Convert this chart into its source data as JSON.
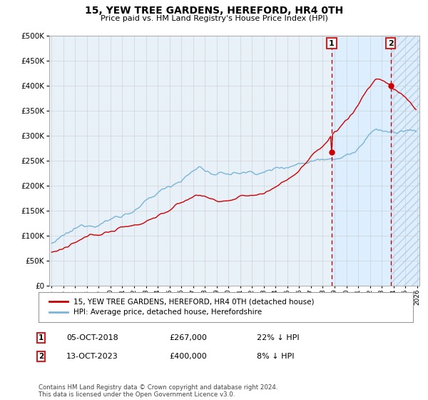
{
  "title": "15, YEW TREE GARDENS, HEREFORD, HR4 0TH",
  "subtitle": "Price paid vs. HM Land Registry's House Price Index (HPI)",
  "legend_line1": "15, YEW TREE GARDENS, HEREFORD, HR4 0TH (detached house)",
  "legend_line2": "HPI: Average price, detached house, Herefordshire",
  "footnote": "Contains HM Land Registry data © Crown copyright and database right 2024.\nThis data is licensed under the Open Government Licence v3.0.",
  "hpi_color": "#7ab4d8",
  "price_color": "#cc0000",
  "shade_color": "#ddeeff",
  "hatch_color": "#b8cfe8",
  "grid_color": "#cccccc",
  "background_color": "#ffffff",
  "plot_bg_color": "#e8f0f8",
  "annotation1": {
    "label": "1",
    "date": "05-OCT-2018",
    "price": 267000,
    "pct": "22% ↓ HPI"
  },
  "annotation2": {
    "label": "2",
    "date": "13-OCT-2023",
    "price": 400000,
    "pct": "8% ↓ HPI"
  },
  "ann1_year": 2018.75,
  "ann2_year": 2023.75,
  "x_start_year": 1995,
  "x_end_year": 2026,
  "ylim_min": 0,
  "ylim_max": 500000
}
